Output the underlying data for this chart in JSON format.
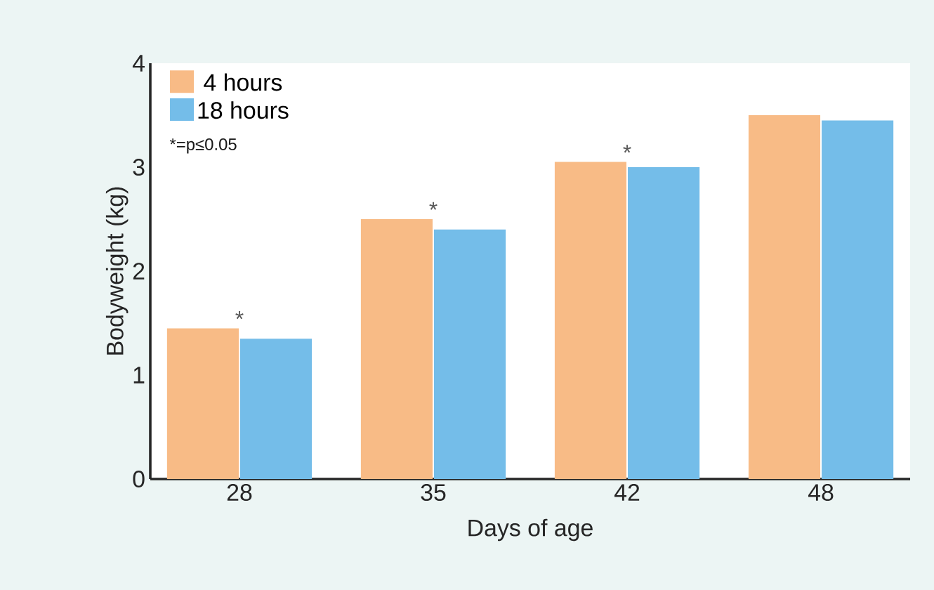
{
  "chart_data": {
    "type": "bar",
    "xlabel": "Days of age",
    "ylabel": "Bodyweight (kg)",
    "categories": [
      "28",
      "35",
      "42",
      "48"
    ],
    "series": [
      {
        "name": "4 hours",
        "color": "#f8bb86",
        "values": [
          1.45,
          2.5,
          3.05,
          3.5
        ]
      },
      {
        "name": "18 hours",
        "color": "#74bde9",
        "values": [
          1.35,
          2.4,
          3.0,
          3.45
        ]
      }
    ],
    "ylim": [
      0,
      4
    ],
    "yticks": [
      0,
      1,
      2,
      3,
      4
    ],
    "legend": "top left",
    "annotations": [
      "*=p≤0.05",
      {
        "text": "*",
        "x": "28",
        "y": 1.45
      },
      {
        "text": "*",
        "x": "35",
        "y": 2.5
      },
      {
        "text": "*",
        "x": "42",
        "y": 3.05
      }
    ]
  }
}
